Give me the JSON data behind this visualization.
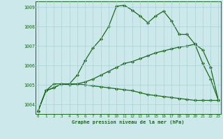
{
  "x": [
    0,
    1,
    2,
    3,
    4,
    5,
    6,
    7,
    8,
    9,
    10,
    11,
    12,
    13,
    14,
    15,
    16,
    17,
    18,
    19,
    20,
    21,
    22,
    23
  ],
  "line1": [
    1003.65,
    1004.7,
    1004.85,
    1005.05,
    1005.05,
    1005.5,
    1006.25,
    1006.9,
    1007.35,
    1008.0,
    1009.05,
    1009.1,
    1008.85,
    1008.55,
    1008.2,
    1008.55,
    1008.8,
    1008.3,
    1007.6,
    1007.6,
    1007.1,
    1006.1,
    1005.3,
    1004.2
  ],
  "line2": [
    1003.65,
    1004.7,
    1004.85,
    1005.05,
    1005.05,
    1005.05,
    1005.0,
    1004.95,
    1004.9,
    1004.85,
    1004.8,
    1004.75,
    1004.7,
    1004.6,
    1004.5,
    1004.45,
    1004.4,
    1004.35,
    1004.3,
    1004.25,
    1004.2,
    1004.2,
    1004.2,
    1004.2
  ],
  "line3": [
    1003.65,
    1004.7,
    1005.05,
    1005.05,
    1005.0,
    1005.05,
    1005.15,
    1005.3,
    1005.5,
    1005.7,
    1005.9,
    1006.1,
    1006.2,
    1006.35,
    1006.5,
    1006.65,
    1006.75,
    1006.85,
    1006.95,
    1007.0,
    1007.1,
    1006.8,
    1005.9,
    1004.2
  ],
  "line_color": "#1a6b1a",
  "bg_color": "#cce8ea",
  "grid_color": "#aad0d5",
  "xlabel": "Graphe pression niveau de la mer (hPa)",
  "ylim_min": 1003.5,
  "ylim_max": 1009.3,
  "xlim_min": 0,
  "xlim_max": 23
}
